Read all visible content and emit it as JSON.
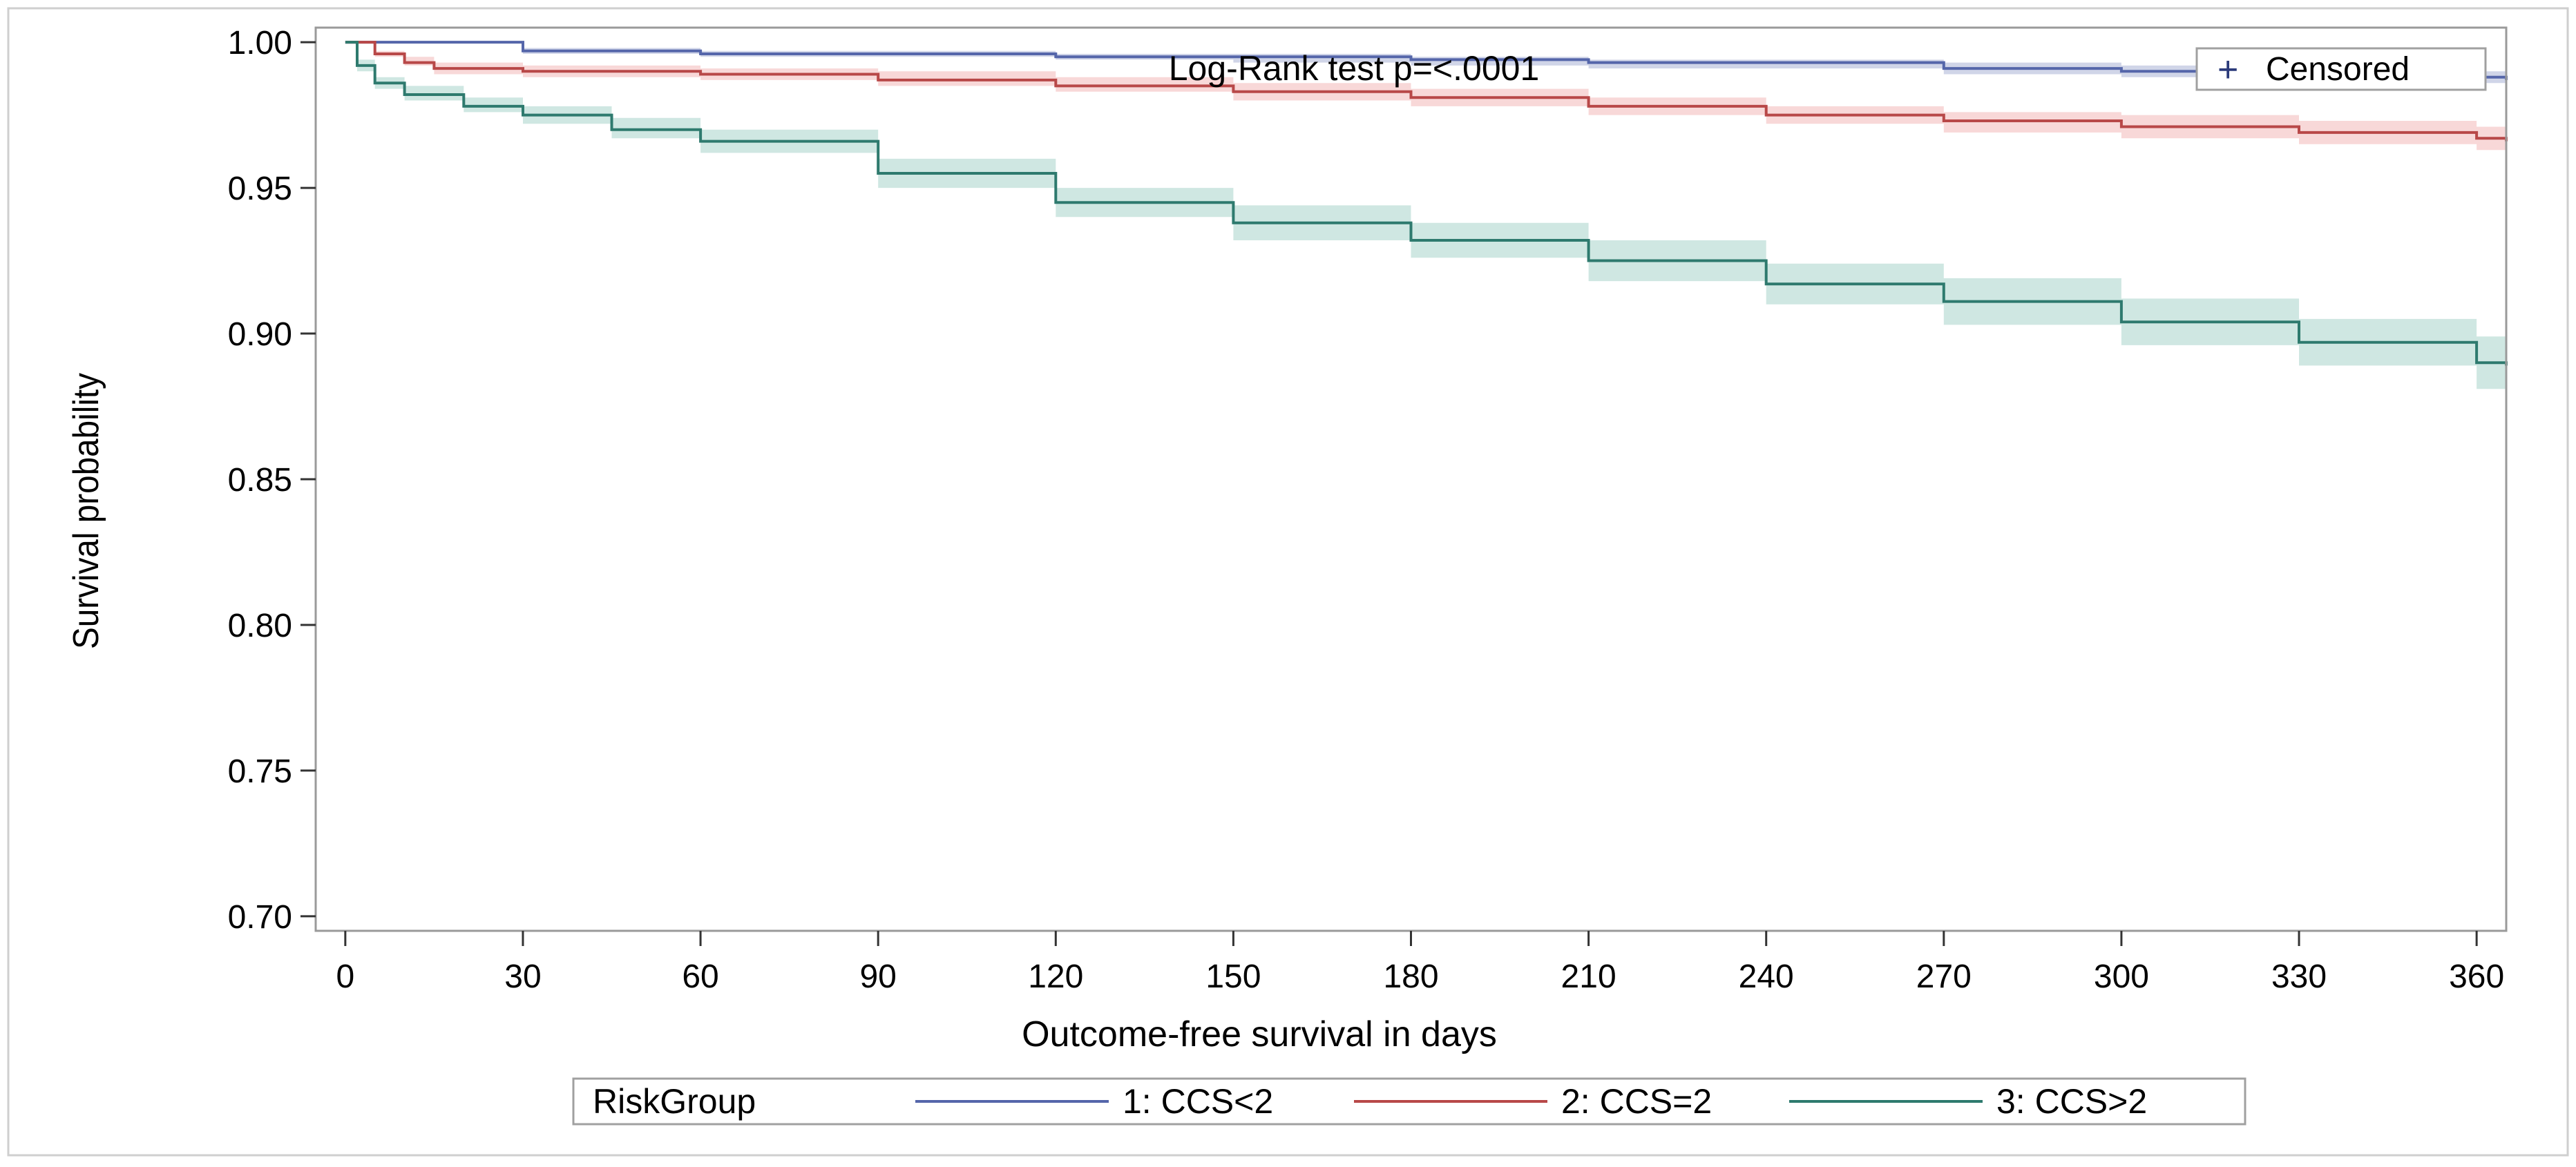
{
  "chart_data": {
    "type": "line",
    "subtype": "kaplan-meier",
    "title": "",
    "annotation": "Log-Rank test p=<.0001",
    "xlabel": "Outcome-free survival in days",
    "ylabel": "Survival probability",
    "xlim": [
      -5,
      365
    ],
    "ylim": [
      0.695,
      1.005
    ],
    "x_ticks": [
      0,
      30,
      60,
      90,
      120,
      150,
      180,
      210,
      240,
      270,
      300,
      330,
      360
    ],
    "y_ticks": [
      0.7,
      0.75,
      0.8,
      0.85,
      0.9,
      0.95,
      1.0
    ],
    "y_tick_labels": [
      "0.70",
      "0.75",
      "0.80",
      "0.85",
      "0.90",
      "0.95",
      "1.00"
    ],
    "censored_legend": {
      "symbol": "+",
      "label": "Censored"
    },
    "legend": {
      "title": "RiskGroup",
      "position": "bottom",
      "entries": [
        "1: CCS<2",
        "2: CCS=2",
        "3: CCS>2"
      ]
    },
    "series": [
      {
        "name": "1: CCS<2",
        "color": "#5566aa",
        "band_color": "#a9b3d6",
        "x": [
          0,
          30,
          60,
          90,
          120,
          150,
          180,
          210,
          240,
          270,
          300,
          330,
          360,
          365
        ],
        "values": [
          1.0,
          0.997,
          0.996,
          0.996,
          0.995,
          0.995,
          0.994,
          0.993,
          0.993,
          0.991,
          0.99,
          0.989,
          0.988,
          0.987
        ],
        "lower": [
          1.0,
          0.996,
          0.995,
          0.995,
          0.994,
          0.993,
          0.992,
          0.991,
          0.991,
          0.989,
          0.988,
          0.987,
          0.986,
          0.985
        ],
        "upper": [
          1.0,
          0.998,
          0.997,
          0.997,
          0.996,
          0.996,
          0.995,
          0.994,
          0.994,
          0.993,
          0.992,
          0.991,
          0.99,
          0.989
        ]
      },
      {
        "name": "2: CCS=2",
        "color": "#b84848",
        "band_color": "#f2b8b8",
        "x": [
          0,
          5,
          10,
          15,
          30,
          60,
          90,
          120,
          150,
          180,
          210,
          240,
          270,
          300,
          330,
          360,
          365
        ],
        "values": [
          1.0,
          0.996,
          0.993,
          0.991,
          0.99,
          0.989,
          0.987,
          0.985,
          0.983,
          0.981,
          0.978,
          0.975,
          0.973,
          0.971,
          0.969,
          0.967,
          0.966
        ],
        "lower": [
          1.0,
          0.995,
          0.992,
          0.989,
          0.988,
          0.987,
          0.985,
          0.983,
          0.98,
          0.978,
          0.975,
          0.972,
          0.969,
          0.967,
          0.965,
          0.963,
          0.962
        ],
        "upper": [
          1.0,
          0.997,
          0.995,
          0.993,
          0.992,
          0.991,
          0.99,
          0.988,
          0.986,
          0.984,
          0.981,
          0.978,
          0.976,
          0.975,
          0.973,
          0.971,
          0.97
        ]
      },
      {
        "name": "3: CCS>2",
        "color": "#2e7a6e",
        "band_color": "#a8d3cb",
        "x": [
          0,
          2,
          5,
          10,
          20,
          30,
          45,
          60,
          90,
          120,
          150,
          180,
          210,
          240,
          270,
          300,
          330,
          360,
          365
        ],
        "values": [
          1.0,
          0.992,
          0.986,
          0.982,
          0.978,
          0.975,
          0.97,
          0.966,
          0.955,
          0.945,
          0.938,
          0.932,
          0.925,
          0.917,
          0.911,
          0.904,
          0.897,
          0.89,
          0.889
        ],
        "lower": [
          1.0,
          0.99,
          0.984,
          0.98,
          0.976,
          0.972,
          0.967,
          0.962,
          0.95,
          0.94,
          0.932,
          0.926,
          0.918,
          0.91,
          0.903,
          0.896,
          0.889,
          0.881,
          0.88
        ],
        "upper": [
          1.0,
          0.994,
          0.988,
          0.985,
          0.981,
          0.978,
          0.974,
          0.97,
          0.96,
          0.95,
          0.944,
          0.938,
          0.932,
          0.924,
          0.919,
          0.912,
          0.905,
          0.899,
          0.898
        ]
      }
    ]
  }
}
